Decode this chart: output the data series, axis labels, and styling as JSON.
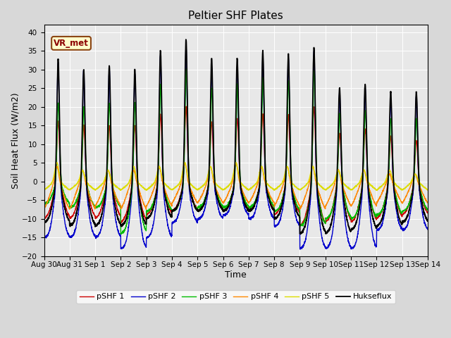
{
  "title": "Peltier SHF Plates",
  "xlabel": "Time",
  "ylabel": "Soil Heat Flux (W/m2)",
  "xlim_days": [
    0,
    15
  ],
  "ylim": [
    -20,
    42
  ],
  "yticks": [
    -20,
    -15,
    -10,
    -5,
    0,
    5,
    10,
    15,
    20,
    25,
    30,
    35,
    40
  ],
  "xtick_labels": [
    "Aug 30",
    "Aug 31",
    "Sep 1",
    "Sep 2",
    "Sep 3",
    "Sep 4",
    "Sep 5",
    "Sep 6",
    "Sep 7",
    "Sep 8",
    "Sep 9",
    "Sep 10",
    "Sep 11",
    "Sep 12",
    "Sep 13",
    "Sep 14"
  ],
  "annotation_text": "VR_met",
  "colors": {
    "pSHF1": "#cc0000",
    "pSHF2": "#0000cc",
    "pSHF3": "#00bb00",
    "pSHF4": "#ff8800",
    "pSHF5": "#dddd00",
    "Hukseflux": "#000000"
  },
  "legend_labels": [
    "pSHF 1",
    "pSHF 2",
    "pSHF 3",
    "pSHF 4",
    "pSHF 5",
    "Hukseflux"
  ],
  "background_color": "#e8e8e8",
  "grid_color": "#ffffff",
  "title_fontsize": 11,
  "axis_fontsize": 9,
  "tick_fontsize": 7.5,
  "figsize": [
    6.4,
    4.8
  ],
  "dpi": 100
}
